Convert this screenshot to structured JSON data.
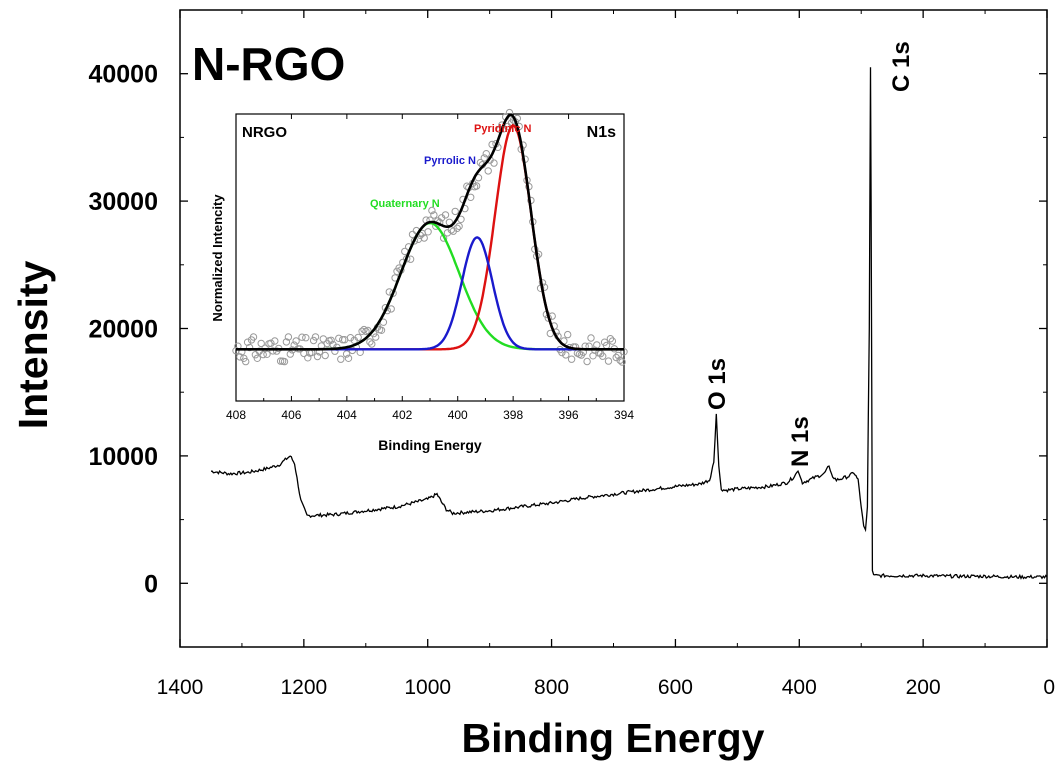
{
  "chart_data": [
    {
      "type": "line",
      "title": "N-RGO",
      "xlabel": "Binding Energy",
      "ylabel": "Intensity",
      "xlim": [
        1400,
        0
      ],
      "ylim": [
        -5000,
        45000
      ],
      "x_ticks": [
        1400,
        1200,
        1000,
        800,
        600,
        400,
        200,
        0
      ],
      "y_ticks": [
        0,
        10000,
        20000,
        30000,
        40000
      ],
      "series": [
        {
          "x": [
            1350,
            1320,
            1290,
            1260,
            1240,
            1230,
            1222,
            1215,
            1205,
            1195,
            1150,
            1100,
            1050,
            1000,
            985,
            978,
            970,
            960,
            900,
            850,
            800,
            750,
            700,
            650,
            600,
            560,
            545,
            538,
            534,
            530,
            526,
            520,
            500,
            450,
            420,
            410,
            402,
            398,
            395,
            380,
            360,
            352,
            348,
            340,
            320,
            312,
            305,
            300,
            296,
            293,
            290,
            287,
            285,
            284,
            282,
            280,
            250,
            200,
            150,
            100,
            50,
            0
          ],
          "y": [
            8800,
            8600,
            8700,
            9000,
            9300,
            9700,
            10000,
            9400,
            6500,
            5300,
            5400,
            5700,
            6000,
            6600,
            7000,
            6400,
            5800,
            5500,
            5700,
            6000,
            6300,
            6700,
            7000,
            7300,
            7600,
            7800,
            8100,
            9500,
            13300,
            9200,
            7400,
            7300,
            7400,
            7600,
            7900,
            8300,
            8800,
            8300,
            7900,
            8200,
            8600,
            9200,
            8500,
            8100,
            8400,
            8700,
            8100,
            6000,
            4500,
            4200,
            6000,
            20000,
            40500,
            30000,
            1000,
            600,
            600,
            600,
            550,
            550,
            500,
            500
          ]
        }
      ],
      "annotations": [
        "C 1s",
        "O 1s",
        "N 1s"
      ]
    },
    {
      "type": "line",
      "title": "NRGO",
      "subtitle": "N1s",
      "xlabel": "Binding Energy",
      "ylabel": "Normalized Intencity",
      "xlim": [
        408,
        394
      ],
      "ylim": [
        0,
        1
      ],
      "x_ticks": [
        408,
        406,
        404,
        402,
        400,
        398,
        396,
        394
      ],
      "baseline": 0.18,
      "series": [
        {
          "name": "Quaternary N",
          "color": "#22dd22",
          "center": 401.0,
          "amplitude": 0.44,
          "sigma": 1.05
        },
        {
          "name": "Pyrrolic N",
          "color": "#1a1acc",
          "center": 399.3,
          "amplitude": 0.39,
          "sigma": 0.55
        },
        {
          "name": "Pyridinic N",
          "color": "#dd1111",
          "center": 398.0,
          "amplitude": 0.78,
          "sigma": 0.65
        }
      ],
      "envelope_color": "#000000",
      "points_color": "#999999"
    }
  ]
}
